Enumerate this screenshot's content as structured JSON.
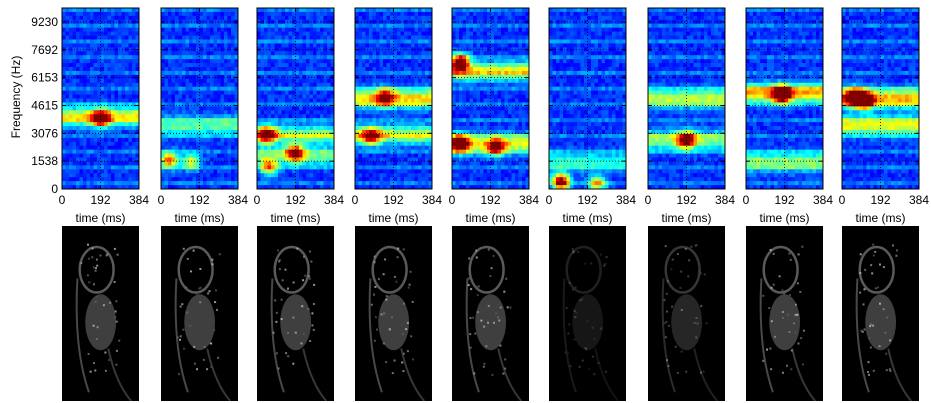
{
  "chart_data": {
    "type": "heatmap",
    "panel_count": 9,
    "xlabel": "time (ms)",
    "ylabel": "Frequency (Hz)",
    "x_ticks": [
      0,
      192,
      384
    ],
    "x_tick_labels": [
      "0",
      "192",
      "384"
    ],
    "y_ticks": [
      0,
      1538,
      3076,
      4615,
      6153,
      7692,
      9230
    ],
    "y_tick_labels": [
      "0",
      "1538",
      "3076",
      "4615",
      "6153",
      "7692",
      "9230"
    ],
    "xlim": [
      0,
      384
    ],
    "ylim": [
      0,
      10000
    ],
    "grid": true,
    "colormap": "jet",
    "colors": {
      "low": "#00008f",
      "mid": "#00ffff",
      "high": "#ff0000",
      "grid": "#000000"
    },
    "panels": [
      {
        "bands": [
          [
            4000,
            0.45
          ]
        ],
        "hotspots": [
          [
            192,
            3900,
            0.7
          ]
        ]
      },
      {
        "bands": [
          [
            3500,
            0.3
          ]
        ],
        "hotspots": [
          [
            40,
            1600,
            0.65
          ],
          [
            150,
            1500,
            0.45
          ]
        ]
      },
      {
        "bands": [
          [
            3000,
            0.35
          ],
          [
            1800,
            0.3
          ]
        ],
        "hotspots": [
          [
            50,
            3000,
            0.7
          ],
          [
            190,
            2000,
            0.7
          ],
          [
            60,
            1200,
            0.5
          ]
        ]
      },
      {
        "bands": [
          [
            5000,
            0.5
          ],
          [
            3000,
            0.4
          ]
        ],
        "hotspots": [
          [
            80,
            2900,
            0.6
          ],
          [
            150,
            5100,
            0.55
          ]
        ]
      },
      {
        "bands": [
          [
            6500,
            0.45
          ],
          [
            2500,
            0.45
          ]
        ],
        "hotspots": [
          [
            40,
            7000,
            0.85
          ],
          [
            40,
            2500,
            0.8
          ],
          [
            220,
            2300,
            0.6
          ]
        ]
      },
      {
        "bands": [
          [
            1500,
            0.25
          ]
        ],
        "hotspots": [
          [
            60,
            400,
            0.85
          ],
          [
            240,
            300,
            0.5
          ]
        ]
      },
      {
        "bands": [
          [
            5000,
            0.4
          ],
          [
            2700,
            0.35
          ]
        ],
        "hotspots": [
          [
            190,
            2700,
            0.7
          ]
        ]
      },
      {
        "bands": [
          [
            5300,
            0.55
          ],
          [
            1500,
            0.35
          ]
        ],
        "hotspots": [
          [
            180,
            5200,
            0.85
          ]
        ]
      },
      {
        "bands": [
          [
            5000,
            0.55
          ],
          [
            3500,
            0.45
          ]
        ],
        "hotspots": [
          [
            110,
            4900,
            0.9
          ],
          [
            60,
            5100,
            0.7
          ]
        ]
      }
    ],
    "image_row": {
      "type": "grayscale-image",
      "panel_count": 9,
      "content": "sagittal MRI frames of the vocal tract, one per spectrogram"
    }
  }
}
